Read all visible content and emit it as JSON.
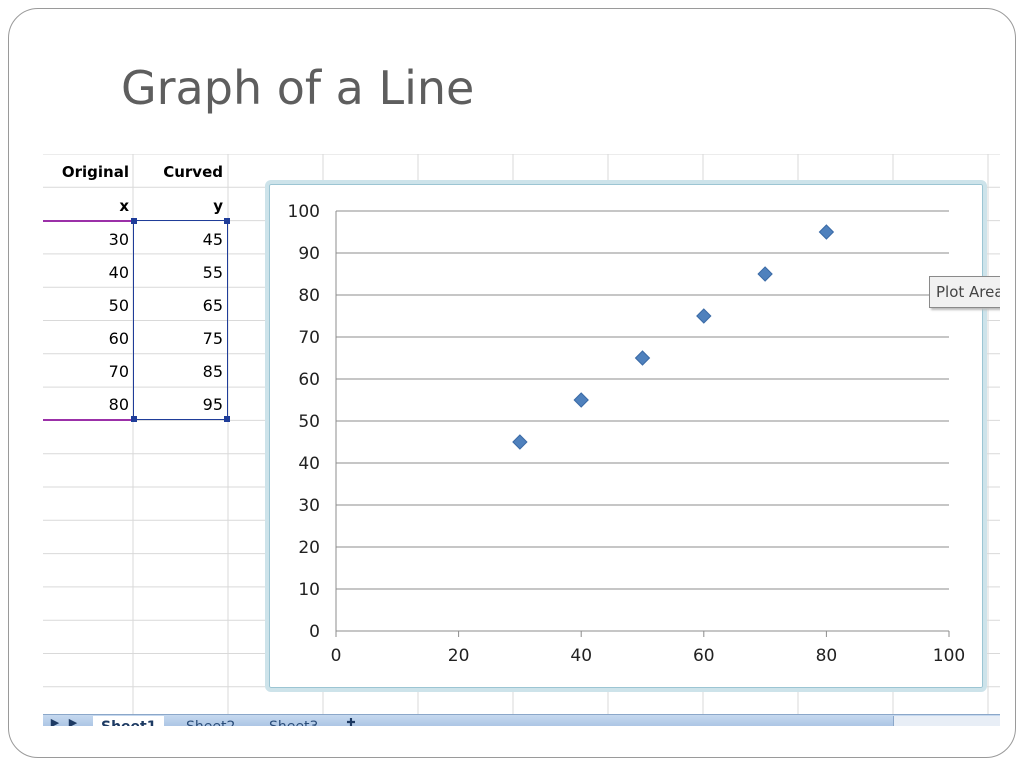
{
  "slide": {
    "title": "Graph of a Line"
  },
  "sheet": {
    "headers": {
      "col_a": "Original",
      "col_b": "Curved"
    },
    "subheaders": {
      "col_a": "x",
      "col_b": "y"
    },
    "rows": [
      {
        "x": "30",
        "y": "45"
      },
      {
        "x": "40",
        "y": "55"
      },
      {
        "x": "50",
        "y": "65"
      },
      {
        "x": "60",
        "y": "75"
      },
      {
        "x": "70",
        "y": "85"
      },
      {
        "x": "80",
        "y": "95"
      }
    ],
    "tabs": [
      "Sheet1",
      "Sheet2",
      "Sheet3"
    ]
  },
  "tooltip": {
    "text": "Plot Area"
  },
  "chart_data": {
    "type": "scatter",
    "marker": "diamond",
    "color": "#4f81bd",
    "x": [
      30,
      40,
      50,
      60,
      70,
      80
    ],
    "y": [
      45,
      55,
      65,
      75,
      85,
      95
    ],
    "xlim": [
      0,
      100
    ],
    "ylim": [
      0,
      100
    ],
    "x_ticks": [
      0,
      20,
      40,
      60,
      80,
      100
    ],
    "y_ticks": [
      0,
      10,
      20,
      30,
      40,
      50,
      60,
      70,
      80,
      90,
      100
    ],
    "grid": "horizontal",
    "legend": "none"
  }
}
